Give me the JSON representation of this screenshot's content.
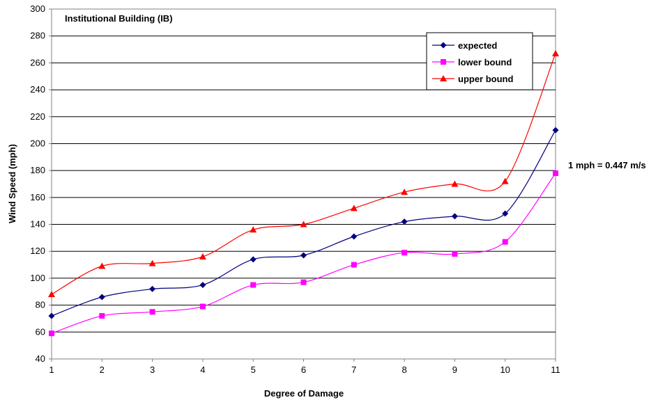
{
  "chart_data": {
    "type": "line",
    "title": "Institutional Building (IB)",
    "xlabel": "Degree of Damage",
    "ylabel": "Wind Speed (mph)",
    "categories": [
      "1",
      "2",
      "3",
      "4",
      "5",
      "6",
      "7",
      "8",
      "9",
      "10",
      "11"
    ],
    "ylim": [
      40,
      300
    ],
    "yticks": [
      "40",
      "60",
      "80",
      "100",
      "120",
      "140",
      "160",
      "180",
      "200",
      "220",
      "240",
      "260",
      "280",
      "300"
    ],
    "grid": true,
    "legend_position": "top-right",
    "annotation": "1 mph = 0.447 m/s",
    "series": [
      {
        "name": "expected",
        "color": "#000080",
        "marker": "diamond",
        "values": [
          72,
          86,
          92,
          95,
          114,
          117,
          131,
          142,
          146,
          148,
          210
        ]
      },
      {
        "name": "lower bound",
        "color": "#ff00ff",
        "marker": "square",
        "values": [
          59,
          72,
          75,
          79,
          95,
          97,
          110,
          119,
          118,
          127,
          178
        ]
      },
      {
        "name": "upper bound",
        "color": "#ff0000",
        "marker": "triangle",
        "values": [
          88,
          109,
          111,
          116,
          136,
          140,
          152,
          164,
          170,
          172,
          267
        ]
      }
    ]
  }
}
